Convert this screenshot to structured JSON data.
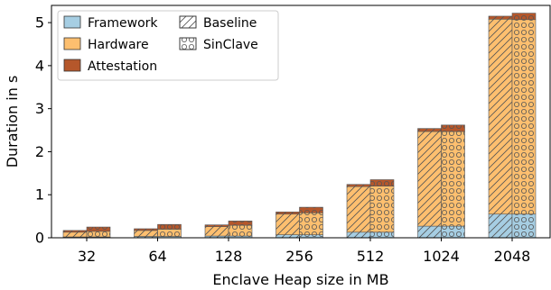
{
  "chart_data": {
    "type": "bar",
    "stacked": true,
    "grouped": true,
    "categories": [
      "32",
      "64",
      "128",
      "256",
      "512",
      "1024",
      "2048"
    ],
    "xlabel": "Enclave Heap size in MB",
    "ylabel": "Duration in s",
    "ylim": [
      0,
      5.4
    ],
    "yticks": [
      0,
      1,
      2,
      3,
      4,
      5
    ],
    "grid": false,
    "legend_position": "top-left",
    "components": [
      {
        "name": "Framework",
        "color": "#a6cee3"
      },
      {
        "name": "Hardware",
        "color": "#fdbf6f"
      },
      {
        "name": "Attestation",
        "color": "#b5572b"
      }
    ],
    "variants": [
      {
        "name": "Baseline",
        "hatch": "diagonal"
      },
      {
        "name": "SinClave",
        "hatch": "circles"
      }
    ],
    "series": [
      {
        "name": "Baseline",
        "framework": [
          0.02,
          0.03,
          0.04,
          0.07,
          0.13,
          0.27,
          0.55
        ],
        "hardware": [
          0.11,
          0.14,
          0.22,
          0.48,
          1.06,
          2.2,
          4.53
        ],
        "attestation": [
          0.04,
          0.04,
          0.04,
          0.05,
          0.05,
          0.07,
          0.07
        ]
      },
      {
        "name": "SinClave",
        "framework": [
          0.02,
          0.03,
          0.04,
          0.07,
          0.13,
          0.27,
          0.55
        ],
        "hardware": [
          0.13,
          0.17,
          0.25,
          0.51,
          1.07,
          2.2,
          4.52
        ],
        "attestation": [
          0.1,
          0.11,
          0.1,
          0.13,
          0.15,
          0.15,
          0.15
        ]
      }
    ]
  },
  "legend": {
    "framework": "Framework",
    "hardware": "Hardware",
    "attestation": "Attestation",
    "baseline": "Baseline",
    "sinclave": "SinClave"
  }
}
